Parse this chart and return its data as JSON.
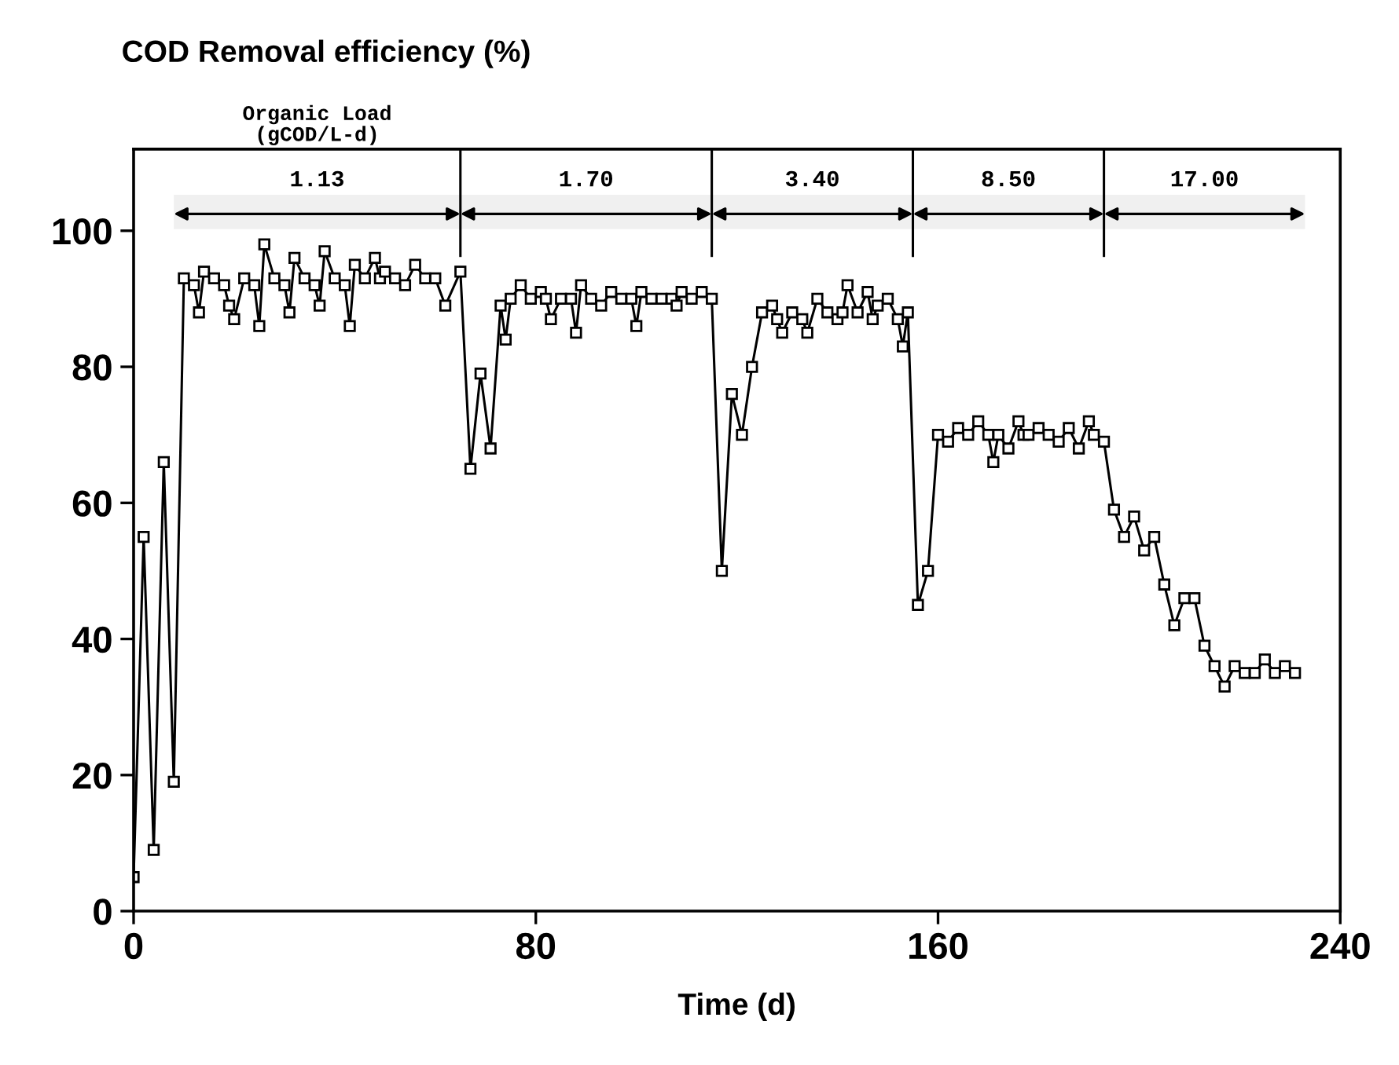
{
  "chart_data": {
    "type": "line",
    "title": "COD Removal efficiency (%)",
    "xlabel": "Time (d)",
    "series": [
      {
        "color": "#000000",
        "x": [
          0,
          2,
          4,
          6,
          8,
          10,
          12,
          13,
          14,
          16,
          18,
          19,
          20,
          22,
          24,
          25,
          26,
          28,
          30,
          31,
          32,
          34,
          36,
          37,
          38,
          40,
          42,
          43,
          44,
          46,
          48,
          49,
          50,
          52,
          54,
          56,
          58,
          60,
          62,
          65,
          67,
          69,
          71,
          73,
          74,
          75,
          77,
          79,
          81,
          82,
          83,
          85,
          87,
          88,
          89,
          91,
          93,
          95,
          97,
          99,
          100,
          101,
          103,
          105,
          107,
          108,
          109,
          111,
          113,
          115,
          117,
          119,
          121,
          123,
          125,
          127,
          128,
          129,
          131,
          133,
          134,
          136,
          138,
          140,
          141,
          142,
          144,
          146,
          147,
          148,
          150,
          152,
          153,
          154,
          156,
          158,
          160,
          162,
          164,
          166,
          168,
          170,
          171,
          172,
          174,
          176,
          177,
          178,
          180,
          182,
          184,
          186,
          188,
          190,
          191,
          193,
          195,
          197,
          199,
          201,
          203,
          205,
          207,
          209,
          211,
          213,
          215,
          217,
          219,
          221,
          223,
          225,
          227,
          229,
          231
        ],
        "values": [
          5,
          55,
          9,
          66,
          19,
          93,
          92,
          88,
          94,
          93,
          92,
          89,
          87,
          93,
          92,
          86,
          98,
          93,
          92,
          88,
          96,
          93,
          92,
          89,
          97,
          93,
          92,
          86,
          95,
          93,
          96,
          93,
          94,
          93,
          92,
          95,
          93,
          93,
          89,
          94,
          65,
          79,
          68,
          89,
          84,
          90,
          92,
          90,
          91,
          90,
          87,
          90,
          90,
          85,
          92,
          90,
          89,
          91,
          90,
          90,
          86,
          91,
          90,
          90,
          90,
          89,
          91,
          90,
          91,
          90,
          50,
          76,
          70,
          80,
          88,
          89,
          87,
          85,
          88,
          87,
          85,
          90,
          88,
          87,
          88,
          92,
          88,
          91,
          87,
          89,
          90,
          87,
          83,
          88,
          45,
          50,
          70,
          69,
          71,
          70,
          72,
          70,
          66,
          70,
          68,
          72,
          70,
          70,
          71,
          70,
          69,
          71,
          68,
          72,
          70,
          69,
          59,
          55,
          58,
          53,
          55,
          48,
          42,
          46,
          46,
          39,
          36,
          33,
          36,
          35,
          35,
          37,
          35,
          36,
          35
        ]
      }
    ],
    "xlim": [
      0,
      240
    ],
    "xticks": [
      0,
      80,
      160,
      240
    ],
    "ylim": [
      0,
      112
    ],
    "yticks": [
      0,
      20,
      40,
      60,
      80,
      100
    ],
    "grid": false,
    "legend": false,
    "marker": "square",
    "line_style": "solid",
    "annotations": [
      "Organic Load\n(gCOD/L-d)"
    ],
    "ref_lines": [
      {
        "axis": "x",
        "value": 65,
        "label": null
      },
      {
        "axis": "x",
        "value": 115,
        "label": null
      },
      {
        "axis": "x",
        "value": 155,
        "label": null
      },
      {
        "axis": "x",
        "value": 193,
        "label": null
      }
    ],
    "bands": [
      {
        "axis": "x",
        "from": 8,
        "to": 65,
        "label": "1.13",
        "color": "#f0f0f0"
      },
      {
        "axis": "x",
        "from": 65,
        "to": 115,
        "label": "1.70",
        "color": "#f0f0f0"
      },
      {
        "axis": "x",
        "from": 115,
        "to": 155,
        "label": "3.40",
        "color": "#f0f0f0"
      },
      {
        "axis": "x",
        "from": 155,
        "to": 193,
        "label": "8.50",
        "color": "#f0f0f0"
      },
      {
        "axis": "x",
        "from": 193,
        "to": 233,
        "label": "17.00",
        "color": "#f0f0f0"
      }
    ]
  }
}
